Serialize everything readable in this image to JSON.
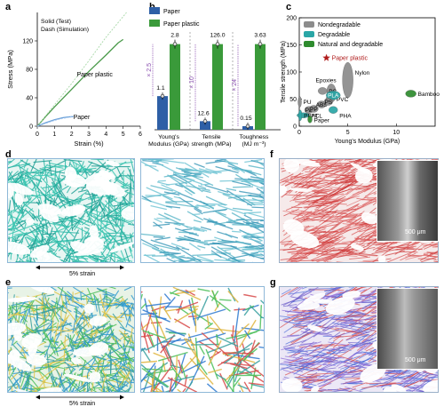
{
  "panel_labels": {
    "a": "a",
    "b": "b",
    "c": "c",
    "d": "d",
    "e": "e",
    "f": "f",
    "g": "g"
  },
  "chart_data": [
    {
      "id": "a",
      "type": "line",
      "xlabel": "Strain (%)",
      "ylabel": "Stress (MPa)",
      "xlim": [
        0,
        6
      ],
      "ylim": [
        0,
        160
      ],
      "xticks": [
        "0",
        "1",
        "2",
        "3",
        "4",
        "5",
        "6"
      ],
      "yticks": [
        "0",
        "40",
        "80",
        "120"
      ],
      "legend_lines": [
        "Solid (Test)",
        "Dash (Simulation)"
      ],
      "series": [
        {
          "name": "Paper plastic",
          "style": "solid",
          "color": "#4a9a4a",
          "x": [
            0,
            0.5,
            1,
            2,
            3,
            4,
            4.7,
            5.0
          ],
          "y": [
            0,
            14,
            27,
            52,
            77,
            100,
            117,
            122
          ]
        },
        {
          "name": "",
          "style": "dash",
          "color": "#a8d8a8",
          "x": [
            0,
            1,
            2,
            3,
            4,
            5.2
          ],
          "y": [
            0,
            30,
            60,
            92,
            125,
            160
          ]
        },
        {
          "name": "Paper",
          "style": "solid",
          "color": "#6aa0d8",
          "x": [
            0,
            0.5,
            1,
            1.5,
            1.8,
            2.1
          ],
          "y": [
            0,
            5,
            9,
            12,
            13,
            13.5
          ]
        },
        {
          "name": "",
          "style": "dash",
          "color": "#a8c8f0",
          "x": [
            0,
            0.5,
            1,
            1.5,
            2
          ],
          "y": [
            0,
            4,
            8,
            11,
            13
          ]
        }
      ],
      "annotations": [
        "Paper plastic",
        "Paper"
      ]
    },
    {
      "id": "b",
      "type": "bar",
      "legend": [
        "Paper",
        "Paper plastic"
      ],
      "colors": {
        "paper": "#2e5fa6",
        "paper_plastic": "#3a9a3a",
        "multiplier": "#8a4fb0"
      },
      "groups": [
        {
          "label_lines": [
            "Young's",
            "Modulus (GPa)"
          ],
          "paper": 1.1,
          "paper_plastic": 2.8,
          "multiplier": "× 2.5",
          "paper_label": "1.1",
          "plastic_label": "2.8"
        },
        {
          "label_lines": [
            "Tensile",
            "strength (MPa)"
          ],
          "paper": 12.6,
          "paper_plastic": 126.0,
          "multiplier": "× 10",
          "paper_label": "12.6",
          "plastic_label": "126.0"
        },
        {
          "label_lines": [
            "Toughness",
            "(MJ m⁻³)"
          ],
          "paper": 0.15,
          "paper_plastic": 3.63,
          "multiplier": "× 24",
          "paper_label": "0.15",
          "plastic_label": "3.63"
        }
      ]
    },
    {
      "id": "c",
      "type": "scatter",
      "xlabel": "Young's Modulus (GPa)",
      "ylabel": "Tensile strength (MPa)",
      "xlim": [
        0,
        14
      ],
      "ylim": [
        0,
        200
      ],
      "xticks": [
        "0",
        "5",
        "10"
      ],
      "yticks": [
        "0",
        "50",
        "100",
        "150",
        "200"
      ],
      "legend": [
        "Nondegradable",
        "Degradable",
        "Natural and degradable"
      ],
      "colors": {
        "nondeg": "#8c8c8c",
        "deg": "#2aa6a6",
        "natural": "#2e8b2e",
        "star": "#b01c1c"
      },
      "materials": [
        {
          "name": "Nylon",
          "category": "nondeg",
          "x": 5.0,
          "y": 85
        },
        {
          "name": "Epoxies",
          "category": "nondeg",
          "x": 3.3,
          "y": 65
        },
        {
          "name": "PC",
          "category": "nondeg",
          "x": 2.4,
          "y": 65
        },
        {
          "name": "PVC",
          "category": "nondeg",
          "x": 3.2,
          "y": 50
        },
        {
          "name": "PLA",
          "category": "deg",
          "x": 3.5,
          "y": 57
        },
        {
          "name": "PE",
          "category": "nondeg",
          "x": 1.0,
          "y": 30
        },
        {
          "name": "PP",
          "category": "nondeg",
          "x": 1.5,
          "y": 32
        },
        {
          "name": "ABS",
          "category": "nondeg",
          "x": 2.3,
          "y": 40
        },
        {
          "name": "PS",
          "category": "nondeg",
          "x": 3.0,
          "y": 45
        },
        {
          "name": "PHA",
          "category": "deg",
          "x": 3.5,
          "y": 30
        },
        {
          "name": "PCL",
          "category": "deg",
          "x": 0.4,
          "y": 20
        },
        {
          "name": "PU",
          "category": "nondeg",
          "x": 0.05,
          "y": 45
        },
        {
          "name": "PBAT",
          "category": "deg",
          "x": 0.1,
          "y": 20
        },
        {
          "name": "Paper",
          "category": "natural",
          "x": 1.1,
          "y": 12.6
        },
        {
          "name": "Bamboo",
          "category": "natural",
          "x": 11.5,
          "y": 60
        },
        {
          "name": "Paper plastic",
          "category": "star",
          "x": 2.8,
          "y": 126
        }
      ]
    }
  ],
  "images": {
    "strain_label_d": "5% strain",
    "strain_label_e": "5% strain",
    "scalebar_f": "500 μm",
    "scalebar_g": "500 μm",
    "colors": {
      "teal_fibers": "#2fb8a8",
      "green_fibers": "#4cbf5a",
      "red_fibers": "#d84a4a",
      "purple_fibers": "#6a5ac8"
    }
  }
}
